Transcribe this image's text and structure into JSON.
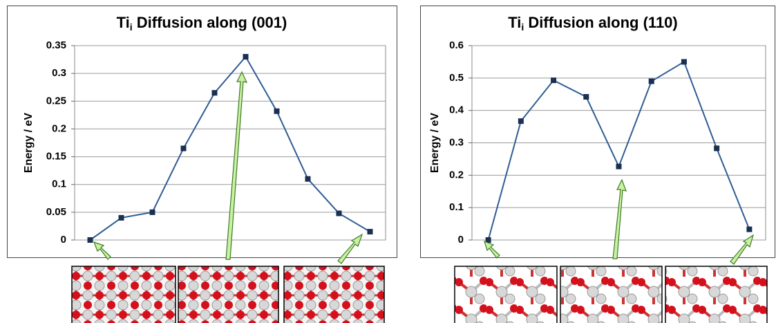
{
  "chart_data": [
    {
      "type": "line",
      "title": "Ti",
      "title_subscript": "i",
      "title_rest": " Diffusion along (001)",
      "y_label": "Energy / eV",
      "categories": [
        null,
        null,
        null,
        null,
        null,
        null,
        null,
        null,
        null,
        null
      ],
      "values": [
        0,
        0.04,
        0.05,
        0.165,
        0.265,
        0.33,
        0.232,
        0.11,
        0.048,
        0.015
      ],
      "color": "#2e5c94",
      "marker_color": "#1a2f52",
      "ylim": [
        0,
        0.35
      ],
      "yticks": [
        0,
        0.05,
        0.1,
        0.15,
        0.2,
        0.25,
        0.3,
        0.35
      ],
      "grid": true
    },
    {
      "type": "line",
      "title": "Ti",
      "title_subscript": "i",
      "title_rest": " Diffusion along (110)",
      "y_label": "Energy / eV",
      "categories": [
        null,
        null,
        null,
        null,
        null,
        null,
        null,
        null,
        null
      ],
      "values": [
        0,
        0.367,
        0.493,
        0.442,
        0.227,
        0.49,
        0.55,
        0.283,
        0.033
      ],
      "color": "#2e5c94",
      "marker_color": "#1a2f52",
      "ylim": [
        0,
        0.6
      ],
      "yticks": [
        0,
        0.1,
        0.2,
        0.3,
        0.4,
        0.5,
        0.6
      ],
      "grid": true
    }
  ]
}
